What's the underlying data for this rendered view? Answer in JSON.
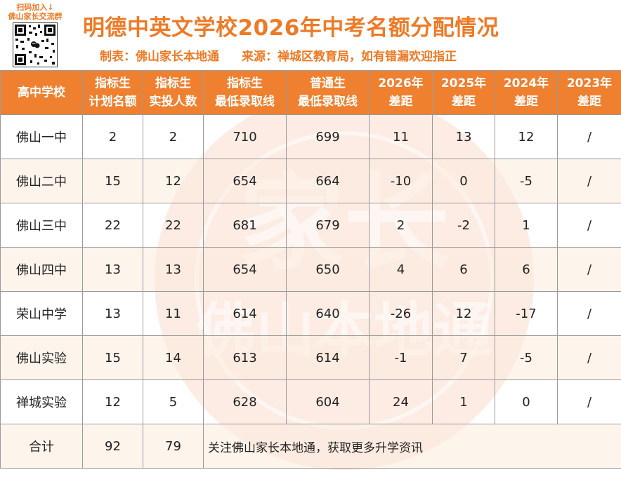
{
  "qr": {
    "caption_1": "扫码加入↓",
    "caption_2": "佛山家长交流群"
  },
  "header": {
    "title": "明德中英文学校2026年中考名额分配情况",
    "maker": "制表：佛山家长本地通",
    "source": "来源：禅城区教育局，如有错漏欢迎指正"
  },
  "table": {
    "columns": [
      {
        "l1": "高中学校",
        "l2": ""
      },
      {
        "l1": "指标生",
        "l2": "计划名额"
      },
      {
        "l1": "指标生",
        "l2": "实投人数"
      },
      {
        "l1": "指标生",
        "l2": "最低录取线"
      },
      {
        "l1": "普通生",
        "l2": "最低录取线"
      },
      {
        "l1": "2026年",
        "l2": "差距"
      },
      {
        "l1": "2025年",
        "l2": "差距"
      },
      {
        "l1": "2024年",
        "l2": "差距"
      },
      {
        "l1": "2023年",
        "l2": "差距"
      }
    ],
    "rows": [
      {
        "school": "佛山一中",
        "plan": "2",
        "actual": "2",
        "quota_line": "710",
        "general_line": "699",
        "gap2026": "11",
        "gap2025": "13",
        "gap2024": "12",
        "gap2023": "/"
      },
      {
        "school": "佛山二中",
        "plan": "15",
        "actual": "12",
        "quota_line": "654",
        "general_line": "664",
        "gap2026": "-10",
        "gap2025": "0",
        "gap2024": "-5",
        "gap2023": "/"
      },
      {
        "school": "佛山三中",
        "plan": "22",
        "actual": "22",
        "quota_line": "681",
        "general_line": "679",
        "gap2026": "2",
        "gap2025": "-2",
        "gap2024": "1",
        "gap2023": "/"
      },
      {
        "school": "佛山四中",
        "plan": "13",
        "actual": "13",
        "quota_line": "654",
        "general_line": "650",
        "gap2026": "4",
        "gap2025": "6",
        "gap2024": "6",
        "gap2023": "/"
      },
      {
        "school": "荣山中学",
        "plan": "13",
        "actual": "11",
        "quota_line": "614",
        "general_line": "640",
        "gap2026": "-26",
        "gap2025": "12",
        "gap2024": "-17",
        "gap2023": "/"
      },
      {
        "school": "佛山实验",
        "plan": "15",
        "actual": "14",
        "quota_line": "613",
        "general_line": "614",
        "gap2026": "-1",
        "gap2025": "7",
        "gap2024": "-5",
        "gap2023": "/"
      },
      {
        "school": "禅城实验",
        "plan": "12",
        "actual": "5",
        "quota_line": "628",
        "general_line": "604",
        "gap2026": "24",
        "gap2025": "1",
        "gap2024": "0",
        "gap2023": "/"
      }
    ],
    "total": {
      "label": "合计",
      "plan": "92",
      "actual": "79",
      "note": "关注佛山家长本地通，获取更多升学资讯"
    }
  },
  "watermark": {
    "line1": "家长",
    "line2": "佛山本地通"
  },
  "colors": {
    "accent": "#ee7a26",
    "header_bg": "#ee8030",
    "border": "#9a9a9a"
  }
}
